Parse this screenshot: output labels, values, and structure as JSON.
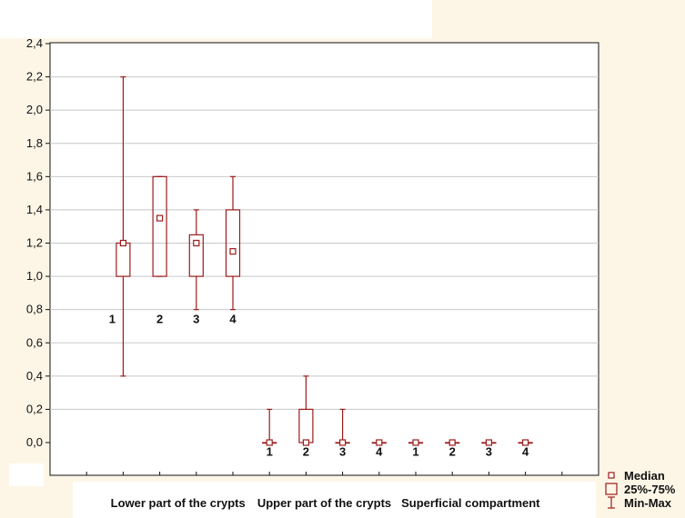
{
  "chart_data": {
    "type": "boxplot",
    "ylim": [
      -0.2,
      2.4
    ],
    "yticks": [
      "2,4",
      "2,2",
      "2,0",
      "1,8",
      "1,6",
      "1,4",
      "1,2",
      "1,0",
      "0,8",
      "0,6",
      "0,4",
      "0,2",
      "0,0"
    ],
    "ytick_values": [
      2.4,
      2.2,
      2.0,
      1.8,
      1.6,
      1.4,
      1.2,
      1.0,
      0.8,
      0.6,
      0.4,
      0.2,
      0.0
    ],
    "grid": true,
    "groups": [
      {
        "name": "Lower part of the crypts",
        "boxes": [
          {
            "label": "1",
            "median": 1.2,
            "q1": 1.0,
            "q3": 1.2,
            "min": 0.4,
            "max": 2.2
          },
          {
            "label": "2",
            "median": 1.35,
            "q1": 1.0,
            "q3": 1.6,
            "min": 1.0,
            "max": 1.6
          },
          {
            "label": "3",
            "median": 1.2,
            "q1": 1.0,
            "q3": 1.25,
            "min": 0.8,
            "max": 1.4
          },
          {
            "label": "4",
            "median": 1.15,
            "q1": 1.0,
            "q3": 1.4,
            "min": 0.8,
            "max": 1.6
          }
        ]
      },
      {
        "name": "Upper part of the crypts",
        "boxes": [
          {
            "label": "1",
            "median": 0.0,
            "q1": 0.0,
            "q3": 0.0,
            "min": 0.0,
            "max": 0.2
          },
          {
            "label": "2",
            "median": 0.0,
            "q1": 0.0,
            "q3": 0.2,
            "min": 0.0,
            "max": 0.4
          },
          {
            "label": "3",
            "median": 0.0,
            "q1": 0.0,
            "q3": 0.0,
            "min": 0.0,
            "max": 0.2
          },
          {
            "label": "4",
            "median": 0.0,
            "q1": 0.0,
            "q3": 0.0,
            "min": 0.0,
            "max": 0.0
          }
        ]
      },
      {
        "name": "Superficial compartment",
        "boxes": [
          {
            "label": "1",
            "median": 0.0,
            "q1": 0.0,
            "q3": 0.0,
            "min": 0.0,
            "max": 0.0
          },
          {
            "label": "2",
            "median": 0.0,
            "q1": 0.0,
            "q3": 0.0,
            "min": 0.0,
            "max": 0.0
          },
          {
            "label": "3",
            "median": 0.0,
            "q1": 0.0,
            "q3": 0.0,
            "min": 0.0,
            "max": 0.0
          },
          {
            "label": "4",
            "median": 0.0,
            "q1": 0.0,
            "q3": 0.0,
            "min": 0.0,
            "max": 0.0
          }
        ]
      }
    ],
    "legend": {
      "placement": "bottom-right",
      "items": [
        {
          "label": "Median",
          "symbol": "median-square"
        },
        {
          "label": "25%-75%",
          "symbol": "box"
        },
        {
          "label": "Min-Max",
          "symbol": "whisker"
        }
      ]
    },
    "colors": {
      "series": "#9b1c1c",
      "grid": "#c8c8c8",
      "axis": "#111111",
      "background_tint": "#fdf6e7"
    }
  }
}
